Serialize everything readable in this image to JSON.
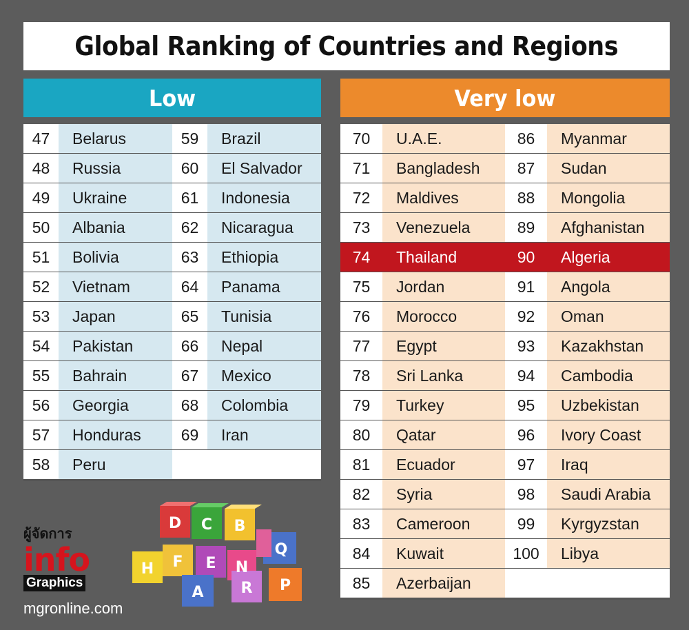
{
  "title": "Global Ranking of Countries and Regions",
  "colors": {
    "low_header": "#1aa6c2",
    "very_low_header": "#ec8a2c",
    "highlight": "#c1161e"
  },
  "low": {
    "label": "Low",
    "left": [
      {
        "rank": "47",
        "name": "Belarus"
      },
      {
        "rank": "48",
        "name": "Russia"
      },
      {
        "rank": "49",
        "name": "Ukraine"
      },
      {
        "rank": "50",
        "name": "Albania"
      },
      {
        "rank": "51",
        "name": "Bolivia"
      },
      {
        "rank": "52",
        "name": "Vietnam"
      },
      {
        "rank": "53",
        "name": "Japan"
      },
      {
        "rank": "54",
        "name": "Pakistan"
      },
      {
        "rank": "55",
        "name": "Bahrain"
      },
      {
        "rank": "56",
        "name": "Georgia"
      },
      {
        "rank": "57",
        "name": "Honduras"
      },
      {
        "rank": "58",
        "name": "Peru"
      }
    ],
    "right": [
      {
        "rank": "59",
        "name": "Brazil"
      },
      {
        "rank": "60",
        "name": "El Salvador"
      },
      {
        "rank": "61",
        "name": "Indonesia"
      },
      {
        "rank": "62",
        "name": "Nicaragua"
      },
      {
        "rank": "63",
        "name": "Ethiopia"
      },
      {
        "rank": "64",
        "name": "Panama"
      },
      {
        "rank": "65",
        "name": "Tunisia"
      },
      {
        "rank": "66",
        "name": "Nepal"
      },
      {
        "rank": "67",
        "name": "Mexico"
      },
      {
        "rank": "68",
        "name": "Colombia"
      },
      {
        "rank": "69",
        "name": "Iran"
      }
    ]
  },
  "very_low": {
    "label": "Very low",
    "left": [
      {
        "rank": "70",
        "name": "U.A.E."
      },
      {
        "rank": "71",
        "name": "Bangladesh"
      },
      {
        "rank": "72",
        "name": "Maldives"
      },
      {
        "rank": "73",
        "name": "Venezuela"
      },
      {
        "rank": "74",
        "name": "Thailand"
      },
      {
        "rank": "75",
        "name": "Jordan"
      },
      {
        "rank": "76",
        "name": "Morocco"
      },
      {
        "rank": "77",
        "name": "Egypt"
      },
      {
        "rank": "78",
        "name": "Sri Lanka"
      },
      {
        "rank": "79",
        "name": "Turkey"
      },
      {
        "rank": "80",
        "name": "Qatar"
      },
      {
        "rank": "81",
        "name": "Ecuador"
      },
      {
        "rank": "82",
        "name": "Syria"
      },
      {
        "rank": "83",
        "name": "Cameroon"
      },
      {
        "rank": "84",
        "name": "Kuwait"
      },
      {
        "rank": "85",
        "name": "Azerbaijan"
      }
    ],
    "right": [
      {
        "rank": "86",
        "name": "Myanmar"
      },
      {
        "rank": "87",
        "name": "Sudan"
      },
      {
        "rank": "88",
        "name": "Mongolia"
      },
      {
        "rank": "89",
        "name": "Afghanistan"
      },
      {
        "rank": "90",
        "name": "Algeria"
      },
      {
        "rank": "91",
        "name": "Angola"
      },
      {
        "rank": "92",
        "name": "Oman"
      },
      {
        "rank": "93",
        "name": "Kazakhstan"
      },
      {
        "rank": "94",
        "name": "Cambodia"
      },
      {
        "rank": "95",
        "name": "Uzbekistan"
      },
      {
        "rank": "96",
        "name": "Ivory Coast"
      },
      {
        "rank": "97",
        "name": "Iraq"
      },
      {
        "rank": "98",
        "name": "Saudi Arabia"
      },
      {
        "rank": "99",
        "name": "Kyrgyzstan"
      },
      {
        "rank": "100",
        "name": "Libya"
      }
    ],
    "highlight_row": 4
  },
  "logo": {
    "thai": "ผู้จัดการ",
    "info": "info",
    "graphics": "Graphics"
  },
  "site": "mgronline.com",
  "blocks": [
    "D",
    "C",
    "B",
    "H",
    "F",
    "E",
    "N",
    "Q",
    "R",
    "A",
    "P"
  ]
}
